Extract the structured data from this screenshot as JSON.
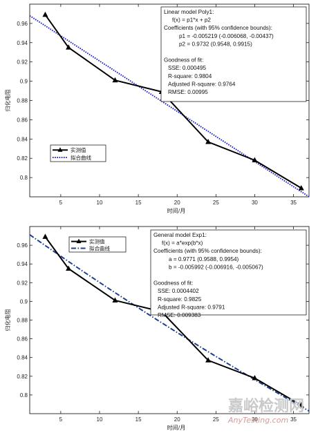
{
  "chart_data": [
    {
      "type": "line",
      "title": "",
      "xlabel": "时间/月",
      "ylabel": "归化电阻",
      "xlim": [
        1,
        37
      ],
      "ylim": [
        0.78,
        0.98
      ],
      "x_ticks": [
        5,
        10,
        15,
        20,
        25,
        30,
        35
      ],
      "y_ticks": [
        0.8,
        0.82,
        0.84,
        0.86,
        0.88,
        0.9,
        0.92,
        0.94,
        0.96
      ],
      "y_tick_labels": [
        "0.8",
        "0.82",
        "0.84",
        "0.86",
        "0.88",
        "0.9",
        "0.92",
        "0.94",
        "0.96"
      ],
      "grid": false,
      "legend_position": "bottom-left",
      "series": [
        {
          "name": "实测值",
          "style": "solid-triangle",
          "color": "#000000",
          "x": [
            3,
            6,
            12,
            18,
            24,
            30,
            36
          ],
          "y": [
            0.969,
            0.935,
            0.901,
            0.889,
            0.837,
            0.818,
            0.789
          ]
        },
        {
          "name": "拟合曲线",
          "style": "dotted",
          "color": "#2222cc",
          "model": "poly1",
          "p1": -0.005219,
          "p2": 0.9732
        }
      ],
      "annotation": [
        "Linear model Poly1:",
        "f(x) = p1*x + p2",
        "Coefficients (with 95% confidence bounds):",
        "p1 =  -0.005219  (-0.006068, -0.00437)",
        "p2 =      0.9732  (0.9548, 0.9915)",
        "",
        "Goodness of fit:",
        "SSE: 0.000495",
        "R-square: 0.9804",
        "Adjusted R-square: 0.9764",
        "RMSE: 0.00995"
      ]
    },
    {
      "type": "line",
      "title": "",
      "xlabel": "时间/月",
      "ylabel": "归化电阻",
      "xlim": [
        1,
        37
      ],
      "ylim": [
        0.78,
        0.98
      ],
      "x_ticks": [
        5,
        10,
        15,
        20,
        25,
        30,
        35
      ],
      "y_ticks": [
        0.8,
        0.82,
        0.84,
        0.86,
        0.88,
        0.9,
        0.92,
        0.94,
        0.96
      ],
      "y_tick_labels": [
        "0.8",
        "0.82",
        "0.84",
        "0.86",
        "0.88",
        "0.9",
        "0.92",
        "0.94",
        "0.96"
      ],
      "grid": false,
      "legend_position": "top-left",
      "series": [
        {
          "name": "实测值",
          "style": "solid-triangle",
          "color": "#000000",
          "x": [
            3,
            6,
            12,
            18,
            24,
            30,
            36
          ],
          "y": [
            0.969,
            0.935,
            0.901,
            0.889,
            0.837,
            0.818,
            0.789
          ]
        },
        {
          "name": "拟合曲线",
          "style": "dashdot",
          "color": "#1f3f8f",
          "model": "exp1",
          "a": 0.9771,
          "b": -0.005992
        }
      ],
      "annotation": [
        "General model Exp1:",
        "f(x) = a*exp(b*x)",
        "Coefficients (with 95% confidence bounds):",
        "a =      0.9771  (0.9588, 0.9954)",
        "b =  -0.005992  (-0.006916, -0.005067)",
        "",
        "Goodness of fit:",
        "SSE: 0.0004402",
        "R-square: 0.9825",
        "Adjusted R-square: 0.9791",
        "RMSE: 0.009383"
      ]
    }
  ],
  "watermark": {
    "cn": "嘉峪检测网",
    "en": "AnyTesting.com"
  }
}
